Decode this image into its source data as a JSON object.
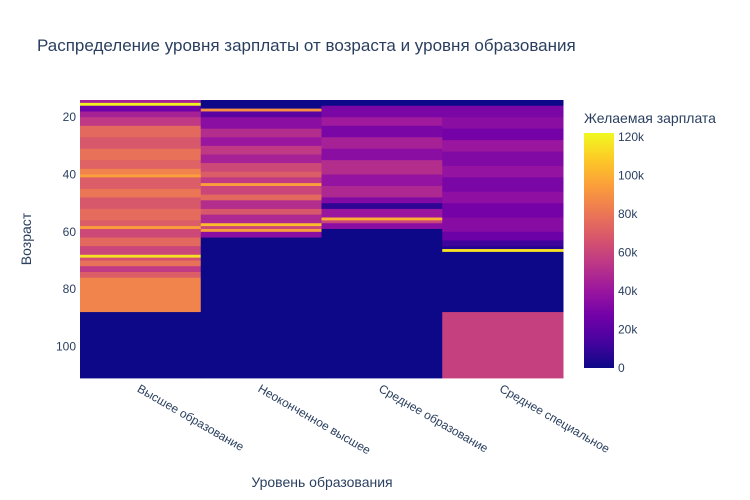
{
  "chart_data": {
    "type": "heatmap",
    "title": "Распределение уровня зарплаты от возраста и уровня образования",
    "xlabel": "Уровень образования",
    "ylabel": "Возраст",
    "categories": [
      "Высшее образование",
      "Неоконченное высшее",
      "Среднее образование",
      "Среднее специальное"
    ],
    "y_range": [
      14,
      111
    ],
    "y_ticks": [
      "20",
      "40",
      "60",
      "80",
      "100"
    ],
    "y_tick_values": [
      20,
      40,
      60,
      80,
      100
    ],
    "colorbar": {
      "title": "Желаемая зарплата",
      "range": [
        0,
        122000
      ],
      "ticks": [
        "0",
        "20k",
        "40k",
        "60k",
        "80k",
        "100k",
        "120k"
      ],
      "tick_values": [
        0,
        20000,
        40000,
        60000,
        80000,
        100000,
        120000
      ],
      "colors": [
        "#0d0887",
        "#46039f",
        "#7201a8",
        "#9c179e",
        "#bd3786",
        "#d8576b",
        "#ed7953",
        "#fb9f3a",
        "#fdca26",
        "#f0f921"
      ]
    },
    "series": [
      {
        "category": "Высшее образование",
        "bands": [
          {
            "y0": 14,
            "y1": 15,
            "value": 45000
          },
          {
            "y0": 15,
            "y1": 16,
            "value": 120000
          },
          {
            "y0": 16,
            "y1": 18,
            "value": 25000
          },
          {
            "y0": 18,
            "y1": 20,
            "value": 45000
          },
          {
            "y0": 20,
            "y1": 23,
            "value": 55000
          },
          {
            "y0": 23,
            "y1": 27,
            "value": 75000
          },
          {
            "y0": 27,
            "y1": 31,
            "value": 68000
          },
          {
            "y0": 31,
            "y1": 35,
            "value": 78000
          },
          {
            "y0": 35,
            "y1": 38,
            "value": 72000
          },
          {
            "y0": 38,
            "y1": 40,
            "value": 85000
          },
          {
            "y0": 40,
            "y1": 41,
            "value": 95000
          },
          {
            "y0": 41,
            "y1": 45,
            "value": 70000
          },
          {
            "y0": 45,
            "y1": 48,
            "value": 80000
          },
          {
            "y0": 48,
            "y1": 52,
            "value": 68000
          },
          {
            "y0": 52,
            "y1": 56,
            "value": 76000
          },
          {
            "y0": 56,
            "y1": 58,
            "value": 70000
          },
          {
            "y0": 58,
            "y1": 59,
            "value": 95000
          },
          {
            "y0": 59,
            "y1": 62,
            "value": 62000
          },
          {
            "y0": 62,
            "y1": 65,
            "value": 75000
          },
          {
            "y0": 65,
            "y1": 68,
            "value": 60000
          },
          {
            "y0": 68,
            "y1": 69,
            "value": 115000
          },
          {
            "y0": 69,
            "y1": 70,
            "value": 65000
          },
          {
            "y0": 70,
            "y1": 72,
            "value": 78000
          },
          {
            "y0": 72,
            "y1": 74,
            "value": 55000
          },
          {
            "y0": 74,
            "y1": 76,
            "value": 70000
          },
          {
            "y0": 76,
            "y1": 88,
            "value": 85000
          },
          {
            "y0": 88,
            "y1": 111,
            "value": 0
          }
        ]
      },
      {
        "category": "Неоконченное высшее",
        "bands": [
          {
            "y0": 14,
            "y1": 17,
            "value": 0
          },
          {
            "y0": 17,
            "y1": 18,
            "value": 90000
          },
          {
            "y0": 18,
            "y1": 20,
            "value": 20000
          },
          {
            "y0": 20,
            "y1": 24,
            "value": 35000
          },
          {
            "y0": 24,
            "y1": 27,
            "value": 50000
          },
          {
            "y0": 27,
            "y1": 30,
            "value": 40000
          },
          {
            "y0": 30,
            "y1": 33,
            "value": 55000
          },
          {
            "y0": 33,
            "y1": 36,
            "value": 45000
          },
          {
            "y0": 36,
            "y1": 39,
            "value": 62000
          },
          {
            "y0": 39,
            "y1": 41,
            "value": 70000
          },
          {
            "y0": 41,
            "y1": 43,
            "value": 55000
          },
          {
            "y0": 43,
            "y1": 44,
            "value": 95000
          },
          {
            "y0": 44,
            "y1": 47,
            "value": 60000
          },
          {
            "y0": 47,
            "y1": 49,
            "value": 75000
          },
          {
            "y0": 49,
            "y1": 52,
            "value": 50000
          },
          {
            "y0": 52,
            "y1": 54,
            "value": 68000
          },
          {
            "y0": 54,
            "y1": 57,
            "value": 48000
          },
          {
            "y0": 57,
            "y1": 58,
            "value": 105000
          },
          {
            "y0": 58,
            "y1": 59,
            "value": 60000
          },
          {
            "y0": 59,
            "y1": 60,
            "value": 95000
          },
          {
            "y0": 60,
            "y1": 62,
            "value": 35000
          },
          {
            "y0": 62,
            "y1": 111,
            "value": 0
          }
        ]
      },
      {
        "category": "Среднее образование",
        "bands": [
          {
            "y0": 14,
            "y1": 16,
            "value": 0
          },
          {
            "y0": 16,
            "y1": 20,
            "value": 30000
          },
          {
            "y0": 20,
            "y1": 23,
            "value": 42000
          },
          {
            "y0": 23,
            "y1": 27,
            "value": 30000
          },
          {
            "y0": 27,
            "y1": 31,
            "value": 45000
          },
          {
            "y0": 31,
            "y1": 35,
            "value": 35000
          },
          {
            "y0": 35,
            "y1": 40,
            "value": 50000
          },
          {
            "y0": 40,
            "y1": 44,
            "value": 38000
          },
          {
            "y0": 44,
            "y1": 48,
            "value": 48000
          },
          {
            "y0": 48,
            "y1": 50,
            "value": 32000
          },
          {
            "y0": 50,
            "y1": 52,
            "value": 8000
          },
          {
            "y0": 52,
            "y1": 55,
            "value": 40000
          },
          {
            "y0": 55,
            "y1": 56,
            "value": 100000
          },
          {
            "y0": 56,
            "y1": 57,
            "value": 60000
          },
          {
            "y0": 57,
            "y1": 59,
            "value": 35000
          },
          {
            "y0": 59,
            "y1": 111,
            "value": 0
          }
        ]
      },
      {
        "category": "Среднее специальное",
        "bands": [
          {
            "y0": 14,
            "y1": 16,
            "value": 0
          },
          {
            "y0": 16,
            "y1": 20,
            "value": 30000
          },
          {
            "y0": 20,
            "y1": 24,
            "value": 35000
          },
          {
            "y0": 24,
            "y1": 28,
            "value": 28000
          },
          {
            "y0": 28,
            "y1": 32,
            "value": 40000
          },
          {
            "y0": 32,
            "y1": 37,
            "value": 32000
          },
          {
            "y0": 37,
            "y1": 41,
            "value": 38000
          },
          {
            "y0": 41,
            "y1": 46,
            "value": 30000
          },
          {
            "y0": 46,
            "y1": 50,
            "value": 36000
          },
          {
            "y0": 50,
            "y1": 55,
            "value": 28000
          },
          {
            "y0": 55,
            "y1": 60,
            "value": 34000
          },
          {
            "y0": 60,
            "y1": 63,
            "value": 25000
          },
          {
            "y0": 63,
            "y1": 65,
            "value": 12000
          },
          {
            "y0": 65,
            "y1": 66,
            "value": 5000
          },
          {
            "y0": 66,
            "y1": 67,
            "value": 115000
          },
          {
            "y0": 67,
            "y1": 88,
            "value": 0
          },
          {
            "y0": 88,
            "y1": 111,
            "value": 58000
          }
        ]
      }
    ]
  }
}
